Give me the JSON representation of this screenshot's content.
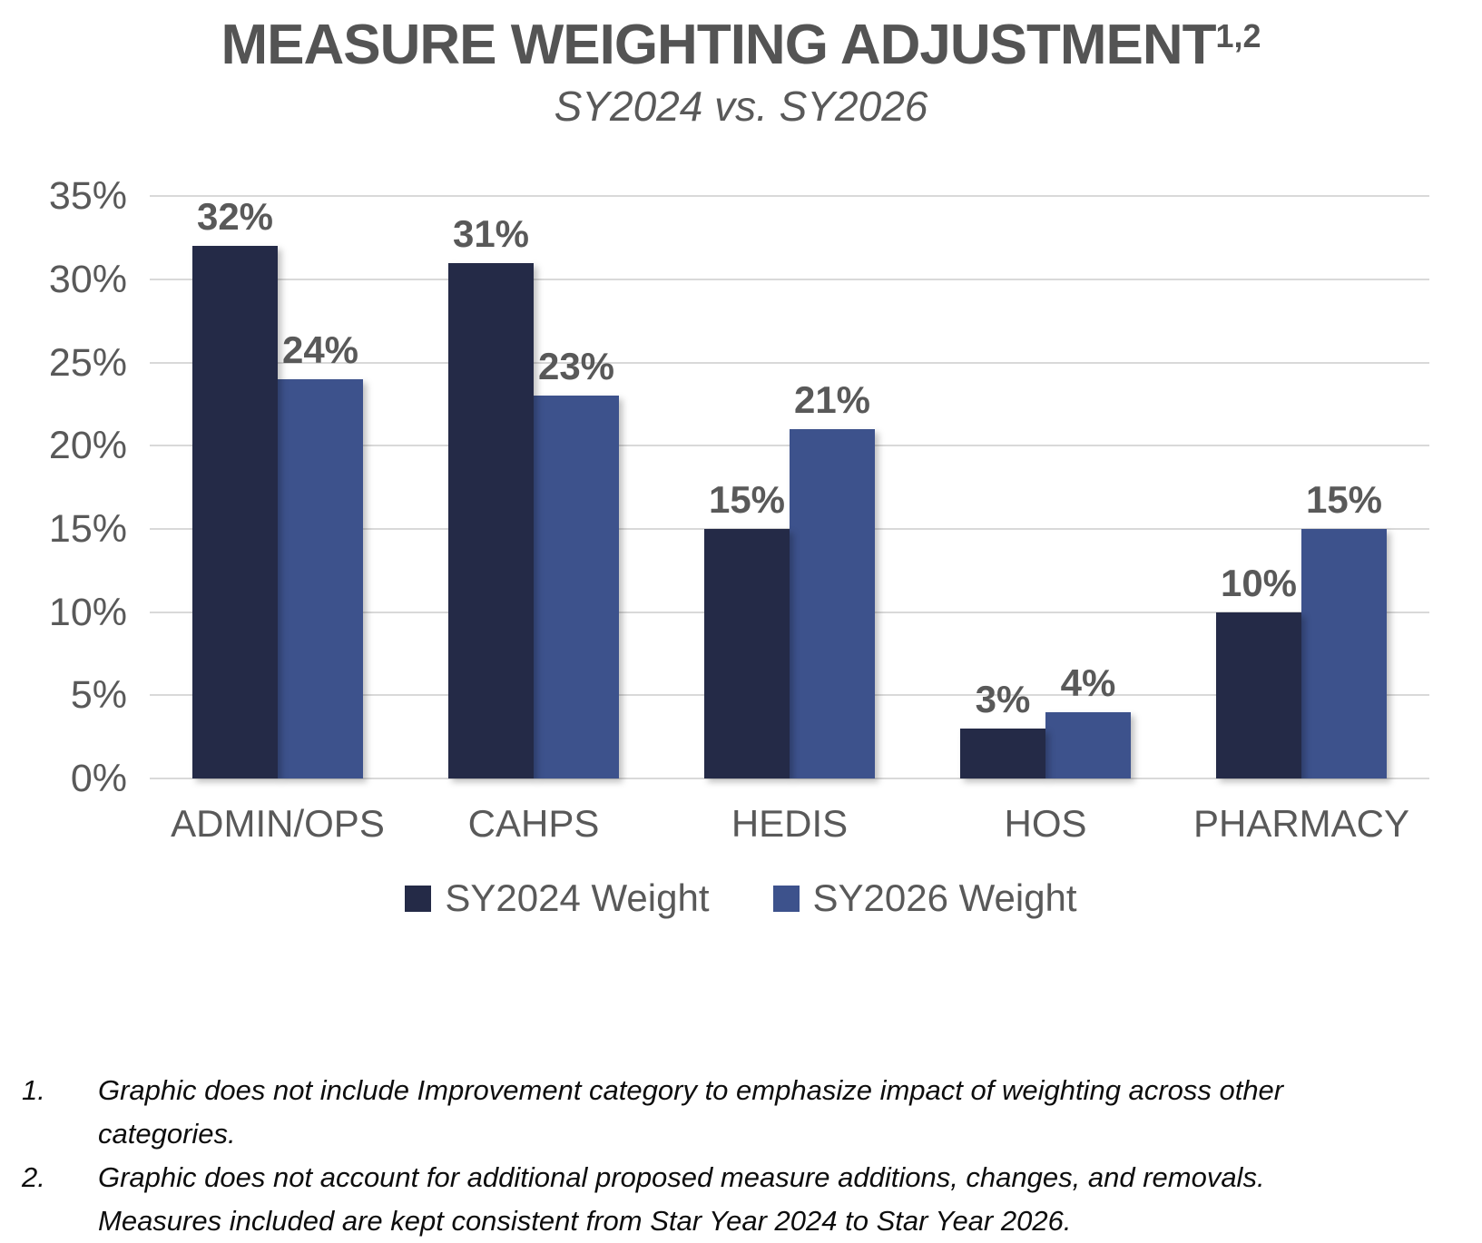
{
  "header": {
    "title": "MEASURE WEIGHTING ADJUSTMENT",
    "title_superscript": "1,2",
    "subtitle": "SY2024 vs. SY2026"
  },
  "chart_data": {
    "type": "bar",
    "categories": [
      "ADMIN/OPS",
      "CAHPS",
      "HEDIS",
      "HOS",
      "PHARMACY"
    ],
    "series": [
      {
        "name": "SY2024 Weight",
        "color": "#242a47",
        "values": [
          32,
          31,
          15,
          3,
          10
        ],
        "labels": [
          "32%",
          "31%",
          "15%",
          "3%",
          "10%"
        ]
      },
      {
        "name": "SY2026 Weight",
        "color": "#3d528c",
        "values": [
          24,
          23,
          21,
          4,
          15
        ],
        "labels": [
          "24%",
          "23%",
          "21%",
          "4%",
          "15%"
        ]
      }
    ],
    "title": "MEASURE WEIGHTING ADJUSTMENT",
    "subtitle": "SY2024 vs. SY2026",
    "xlabel": "",
    "ylabel": "",
    "ylim": [
      0,
      35
    ],
    "ytick_step": 5,
    "ytick_labels": [
      "0%",
      "5%",
      "10%",
      "15%",
      "20%",
      "25%",
      "30%",
      "35%"
    ],
    "grid": "horizontal",
    "gridline_color": "#d9d9d9",
    "legend_position": "bottom-center",
    "data_label_color": "#595959",
    "axis_text_color": "#595959"
  },
  "footnotes": [
    {
      "number": "1.",
      "text": "Graphic does not include Improvement category to emphasize impact of weighting across other categories."
    },
    {
      "number": "2.",
      "text": "Graphic does not account for additional proposed measure additions, changes, and removals. Measures included are kept consistent from Star Year 2024 to Star Year 2026."
    }
  ],
  "colors": {
    "background": "#ffffff",
    "title": "#545454",
    "subtitle": "#595959",
    "sy2024_bar": "#242a47",
    "sy2026_bar": "#3d528c"
  }
}
